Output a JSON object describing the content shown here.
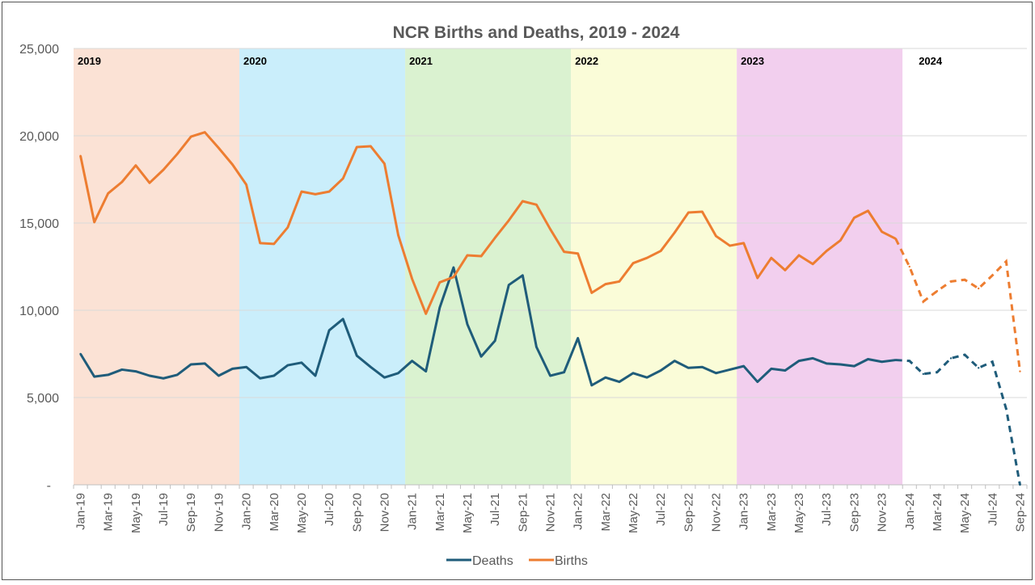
{
  "chart_data": {
    "type": "line",
    "title": "NCR Births and Deaths, 2019 - 2024",
    "xlabel": "",
    "ylabel": "",
    "ylim": [
      0,
      25000
    ],
    "y_ticks": [
      "-",
      "5,000",
      "10,000",
      "15,000",
      "20,000",
      "25,000"
    ],
    "grid": "horizontal",
    "legend_position": "bottom",
    "x": [
      "Jan-19",
      "Feb-19",
      "Mar-19",
      "Apr-19",
      "May-19",
      "Jun-19",
      "Jul-19",
      "Aug-19",
      "Sep-19",
      "Oct-19",
      "Nov-19",
      "Dec-19",
      "Jan-20",
      "Feb-20",
      "Mar-20",
      "Apr-20",
      "May-20",
      "Jun-20",
      "Jul-20",
      "Aug-20",
      "Sep-20",
      "Oct-20",
      "Nov-20",
      "Dec-20",
      "Jan-21",
      "Feb-21",
      "Mar-21",
      "Apr-21",
      "May-21",
      "Jun-21",
      "Jul-21",
      "Aug-21",
      "Sep-21",
      "Oct-21",
      "Nov-21",
      "Dec-21",
      "Jan-22",
      "Feb-22",
      "Mar-22",
      "Apr-22",
      "May-22",
      "Jun-22",
      "Jul-22",
      "Aug-22",
      "Sep-22",
      "Oct-22",
      "Nov-22",
      "Dec-22",
      "Jan-23",
      "Feb-23",
      "Mar-23",
      "Apr-23",
      "May-23",
      "Jun-23",
      "Jul-23",
      "Aug-23",
      "Sep-23",
      "Oct-23",
      "Nov-23",
      "Dec-23",
      "Jan-24",
      "Feb-24",
      "Mar-24",
      "Apr-24",
      "May-24",
      "Jun-24",
      "Jul-24",
      "Aug-24",
      "Sep-24"
    ],
    "x_tick_labels": [
      "Jan-19",
      "Mar-19",
      "May-19",
      "Jul-19",
      "Sep-19",
      "Nov-19",
      "Jan-20",
      "Mar-20",
      "May-20",
      "Jul-20",
      "Sep-20",
      "Nov-20",
      "Jan-21",
      "Mar-21",
      "May-21",
      "Jul-21",
      "Sep-21",
      "Nov-21",
      "Jan-22",
      "Mar-22",
      "May-22",
      "Jul-22",
      "Sep-22",
      "Nov-22",
      "Jan-23",
      "Mar-23",
      "May-23",
      "Jul-23",
      "Sep-23",
      "Nov-23",
      "Jan-24",
      "Mar-24",
      "May-24",
      "Jul-24",
      "Sep-24"
    ],
    "solid_through": "Dec-23",
    "projected_from": "Dec-23",
    "series": [
      {
        "name": "Deaths",
        "color": "#1f5c7a",
        "values": [
          7500,
          6200,
          6300,
          6600,
          6500,
          6250,
          6100,
          6300,
          6900,
          6950,
          6250,
          6650,
          6750,
          6100,
          6250,
          6850,
          7000,
          6250,
          8850,
          9500,
          7400,
          6750,
          6150,
          6400,
          7100,
          6500,
          10150,
          12450,
          9200,
          7350,
          8250,
          11450,
          12000,
          7900,
          6250,
          6450,
          8400,
          5700,
          6150,
          5900,
          6400,
          6150,
          6550,
          7100,
          6700,
          6750,
          6400,
          6600,
          6800,
          5900,
          6650,
          6550,
          7100,
          7250,
          6950,
          6900,
          6800,
          7200,
          7050,
          7150,
          7100,
          6350,
          6450,
          7250,
          7450,
          6700,
          7050,
          4350,
          0
        ]
      },
      {
        "name": "Births",
        "color": "#ed7d31",
        "values": [
          18850,
          15050,
          16700,
          17350,
          18300,
          17300,
          18050,
          18950,
          19950,
          20200,
          19300,
          18350,
          17200,
          13850,
          13800,
          14750,
          16800,
          16650,
          16800,
          17550,
          19350,
          19400,
          18400,
          14300,
          11800,
          9800,
          11600,
          11900,
          13150,
          13100,
          14150,
          15150,
          16250,
          16050,
          14650,
          13350,
          13250,
          11000,
          11500,
          11650,
          12700,
          13000,
          13400,
          14450,
          15600,
          15650,
          14250,
          13700,
          13850,
          11850,
          13000,
          12300,
          13150,
          12650,
          13400,
          14000,
          15300,
          15700,
          14500,
          14100,
          12500,
          10500,
          11100,
          11650,
          11750,
          11250,
          12000,
          12800,
          6500
        ]
      }
    ],
    "year_bands": [
      {
        "label": "2019",
        "start": "Jan-19",
        "color": "#fbe2d5"
      },
      {
        "label": "2020",
        "start": "Jan-20",
        "color": "#caeefb"
      },
      {
        "label": "2021",
        "start": "Jan-21",
        "color": "#daf2d0"
      },
      {
        "label": "2022",
        "start": "Jan-22",
        "color": "#fafcd8"
      },
      {
        "label": "2023",
        "start": "Jan-23",
        "color": "#f2cfee"
      },
      {
        "label": "2024",
        "start": "Jan-24",
        "color": "#ffffff"
      }
    ],
    "legend": [
      "Deaths",
      "Births"
    ]
  }
}
